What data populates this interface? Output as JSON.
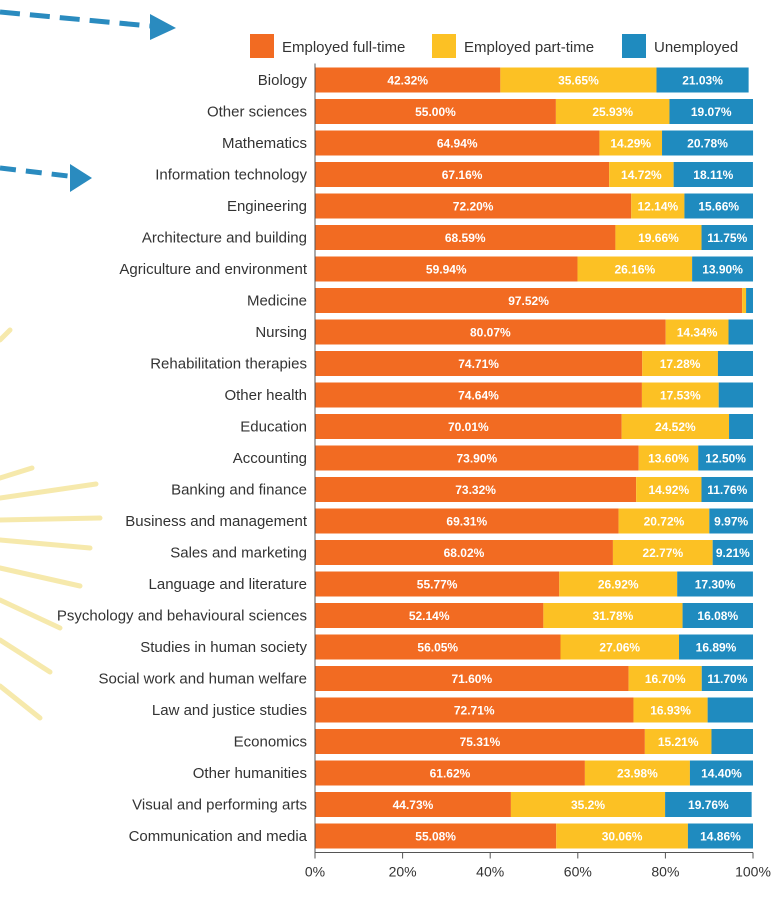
{
  "chart_data": {
    "type": "bar",
    "orientation": "horizontal",
    "stacked": true,
    "title": "",
    "xlabel": "",
    "ylabel": "",
    "xlim": [
      0,
      100
    ],
    "x_ticks": [
      "0%",
      "20%",
      "40%",
      "60%",
      "80%",
      "100%"
    ],
    "legend_position": "top-right",
    "categories": [
      "Biology",
      "Other sciences",
      "Mathematics",
      "Information technology",
      "Engineering",
      "Architecture and building",
      "Agriculture and environment",
      "Medicine",
      "Nursing",
      "Rehabilitation therapies",
      "Other health",
      "Education",
      "Accounting",
      "Banking and finance",
      "Business and management",
      "Sales and marketing",
      "Language and literature",
      "Psychology and behavioural sciences",
      "Studies in human society",
      "Social work and human welfare",
      "Law and justice studies",
      "Economics",
      "Other humanities",
      "Visual and performing arts",
      "Communication and media"
    ],
    "series": [
      {
        "name": "Employed full-time",
        "color": "#f26b22",
        "values": [
          42.32,
          55.0,
          64.94,
          67.16,
          72.2,
          68.59,
          59.94,
          97.52,
          80.07,
          74.71,
          74.64,
          70.01,
          73.9,
          73.32,
          69.31,
          68.02,
          55.77,
          52.14,
          56.05,
          71.6,
          72.71,
          75.31,
          61.62,
          44.73,
          55.08
        ],
        "labels": [
          "42.32%",
          "55.00%",
          "64.94%",
          "67.16%",
          "72.20%",
          "68.59%",
          "59.94%",
          "97.52%",
          "80.07%",
          "74.71%",
          "74.64%",
          "70.01%",
          "73.90%",
          "73.32%",
          "69.31%",
          "68.02%",
          "55.77%",
          "52.14%",
          "56.05%",
          "71.60%",
          "72.71%",
          "75.31%",
          "61.62%",
          "44.73%",
          "55.08%"
        ]
      },
      {
        "name": "Employed part-time",
        "color": "#fcc124",
        "values": [
          35.65,
          25.93,
          14.29,
          14.72,
          12.14,
          19.66,
          26.16,
          0.9,
          14.34,
          17.28,
          17.53,
          24.52,
          13.6,
          14.92,
          20.72,
          22.77,
          26.92,
          31.78,
          27.06,
          16.7,
          16.93,
          15.21,
          23.98,
          35.2,
          30.06
        ],
        "labels": [
          "35.65%",
          "25.93%",
          "14.29%",
          "14.72%",
          "12.14%",
          "19.66%",
          "26.16%",
          "",
          "14.34%",
          "17.28%",
          "17.53%",
          "24.52%",
          "13.60%",
          "14.92%",
          "20.72%",
          "22.77%",
          "26.92%",
          "31.78%",
          "27.06%",
          "16.70%",
          "16.93%",
          "15.21%",
          "23.98%",
          "35.2%",
          "30.06%"
        ]
      },
      {
        "name": "Unemployed",
        "color": "#1f8bbf",
        "values": [
          21.03,
          19.07,
          20.78,
          18.11,
          15.66,
          11.75,
          13.9,
          1.58,
          5.59,
          8.01,
          7.83,
          5.47,
          12.5,
          11.76,
          9.97,
          9.21,
          17.3,
          16.08,
          16.89,
          11.7,
          10.36,
          9.48,
          14.4,
          19.76,
          14.86
        ],
        "labels": [
          "21.03%",
          "19.07%",
          "20.78%",
          "18.11%",
          "15.66%",
          "11.75%",
          "13.90%",
          "",
          "",
          "",
          "",
          "",
          "12.50%",
          "11.76%",
          "9.97%",
          "9.21%",
          "17.30%",
          "16.08%",
          "16.89%",
          "11.70%",
          "",
          "",
          "14.40%",
          "19.76%",
          "14.86%"
        ]
      }
    ]
  }
}
